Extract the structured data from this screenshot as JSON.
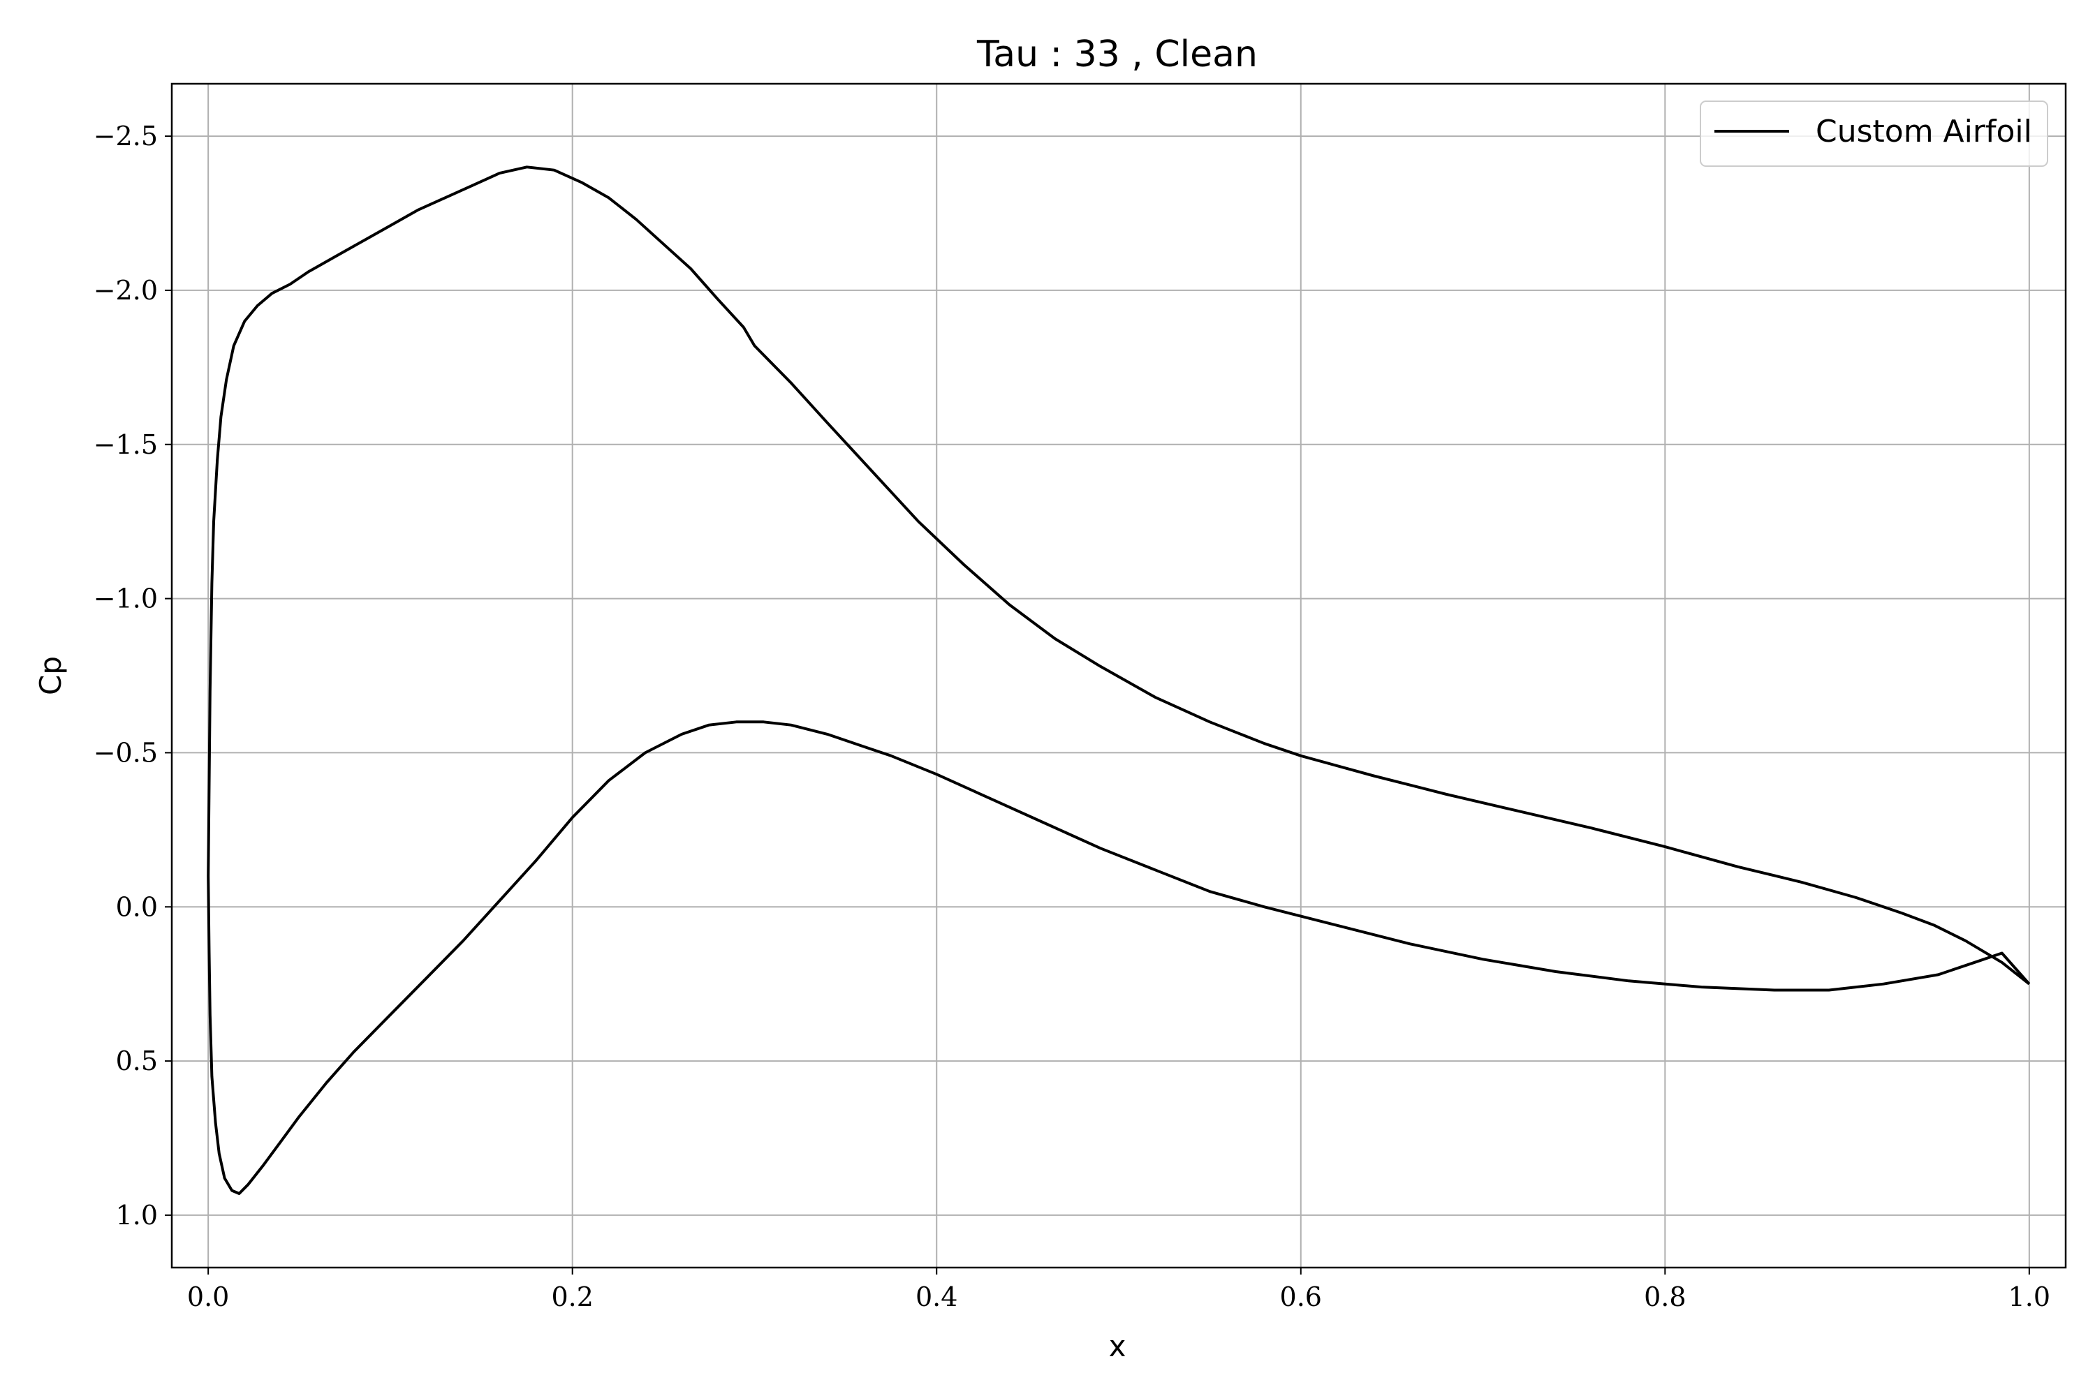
{
  "chart_data": {
    "type": "line",
    "title": "Tau : 33 , Clean",
    "xlabel": "x",
    "ylabel": "Cp",
    "xlim": [
      -0.02,
      1.02
    ],
    "ylim": [
      1.17,
      -2.67
    ],
    "y_inverted": true,
    "grid": true,
    "legend_placement": "top-right",
    "x_ticks": [
      {
        "value": 0.0,
        "label": "0.0"
      },
      {
        "value": 0.2,
        "label": "0.2"
      },
      {
        "value": 0.4,
        "label": "0.4"
      },
      {
        "value": 0.6,
        "label": "0.6"
      },
      {
        "value": 0.8,
        "label": "0.8"
      },
      {
        "value": 1.0,
        "label": "1.0"
      }
    ],
    "y_ticks": [
      {
        "value": -2.5,
        "label": "−2.5"
      },
      {
        "value": -2.0,
        "label": "−2.0"
      },
      {
        "value": -1.5,
        "label": "−1.5"
      },
      {
        "value": -1.0,
        "label": "−1.0"
      },
      {
        "value": -0.5,
        "label": "−0.5"
      },
      {
        "value": 0.0,
        "label": "0.0"
      },
      {
        "value": 0.5,
        "label": "0.5"
      },
      {
        "value": 1.0,
        "label": "1.0"
      }
    ],
    "series": [
      {
        "name": "Custom Airfoil",
        "color": "#000000",
        "x": [
          1.0,
          0.985,
          0.965,
          0.948,
          0.93,
          0.905,
          0.875,
          0.84,
          0.8,
          0.76,
          0.72,
          0.68,
          0.64,
          0.6,
          0.58,
          0.55,
          0.52,
          0.49,
          0.465,
          0.44,
          0.415,
          0.39,
          0.365,
          0.34,
          0.32,
          0.3,
          0.294,
          0.28,
          0.265,
          0.25,
          0.235,
          0.22,
          0.205,
          0.19,
          0.175,
          0.16,
          0.145,
          0.13,
          0.115,
          0.1,
          0.085,
          0.07,
          0.055,
          0.045,
          0.035,
          0.027,
          0.02,
          0.014,
          0.01,
          0.007,
          0.005,
          0.003,
          0.002,
          0.001,
          0.0,
          0.0005,
          0.001,
          0.002,
          0.004,
          0.006,
          0.009,
          0.013,
          0.017,
          0.022,
          0.03,
          0.04,
          0.05,
          0.065,
          0.08,
          0.1,
          0.12,
          0.14,
          0.16,
          0.18,
          0.2,
          0.22,
          0.24,
          0.26,
          0.275,
          0.29,
          0.305,
          0.32,
          0.34,
          0.36,
          0.375,
          0.4,
          0.43,
          0.46,
          0.49,
          0.52,
          0.55,
          0.58,
          0.62,
          0.66,
          0.7,
          0.74,
          0.78,
          0.82,
          0.86,
          0.89,
          0.92,
          0.95,
          0.97,
          0.985,
          1.0
        ],
        "y": [
          0.25,
          0.18,
          0.11,
          0.06,
          0.02,
          -0.03,
          -0.08,
          -0.13,
          -0.195,
          -0.255,
          -0.31,
          -0.365,
          -0.425,
          -0.49,
          -0.53,
          -0.6,
          -0.68,
          -0.78,
          -0.87,
          -0.98,
          -1.11,
          -1.25,
          -1.41,
          -1.57,
          -1.7,
          -1.82,
          -1.88,
          -1.97,
          -2.07,
          -2.15,
          -2.23,
          -2.3,
          -2.35,
          -2.39,
          -2.4,
          -2.38,
          -2.34,
          -2.3,
          -2.26,
          -2.21,
          -2.16,
          -2.11,
          -2.06,
          -2.02,
          -1.99,
          -1.95,
          -1.9,
          -1.82,
          -1.71,
          -1.59,
          -1.45,
          -1.25,
          -1.05,
          -0.7,
          -0.1,
          0.15,
          0.35,
          0.55,
          0.7,
          0.8,
          0.88,
          0.92,
          0.93,
          0.9,
          0.84,
          0.76,
          0.68,
          0.57,
          0.47,
          0.35,
          0.23,
          0.11,
          -0.02,
          -0.15,
          -0.29,
          -0.41,
          -0.5,
          -0.56,
          -0.59,
          -0.6,
          -0.6,
          -0.59,
          -0.56,
          -0.52,
          -0.49,
          -0.43,
          -0.35,
          -0.27,
          -0.19,
          -0.12,
          -0.05,
          0.0,
          0.06,
          0.12,
          0.17,
          0.21,
          0.24,
          0.26,
          0.27,
          0.27,
          0.25,
          0.22,
          0.18,
          0.15,
          0.25
        ]
      }
    ],
    "legend": {
      "entries": [
        "Custom Airfoil"
      ]
    }
  }
}
